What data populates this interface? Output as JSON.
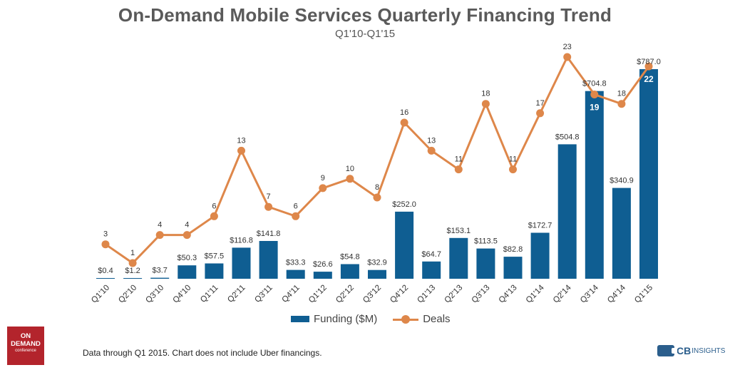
{
  "chart_data": {
    "type": "bar",
    "title": "On-Demand Mobile Services Quarterly Financing Trend",
    "subtitle": "Q1'10-Q1'15",
    "categories": [
      "Q1'10",
      "Q2'10",
      "Q3'10",
      "Q4'10",
      "Q1'11",
      "Q2'11",
      "Q3'11",
      "Q4'11",
      "Q1'12",
      "Q2'12",
      "Q3'12",
      "Q4'12",
      "Q1'13",
      "Q2'13",
      "Q3'13",
      "Q4'13",
      "Q1'14",
      "Q2'14",
      "Q3'14",
      "Q4'14",
      "Q1'15"
    ],
    "series": [
      {
        "name": "Funding ($M)",
        "type": "bar",
        "color": "#0f5e92",
        "values": [
          0.4,
          1.2,
          3.7,
          50.3,
          57.5,
          116.8,
          141.8,
          33.3,
          26.6,
          54.8,
          32.9,
          252.0,
          64.7,
          153.1,
          113.5,
          82.8,
          172.7,
          504.8,
          704.8,
          340.9,
          787.0
        ],
        "labels": [
          "$0.4",
          "$1.2",
          "$3.7",
          "$50.3",
          "$57.5",
          "$116.8",
          "$141.8",
          "$33.3",
          "$26.6",
          "$54.8",
          "$32.9",
          "$252.0",
          "$64.7",
          "$153.1",
          "$113.5",
          "$82.8",
          "$172.7",
          "$504.8",
          "$704.8",
          "$340.9",
          "$787.0"
        ]
      },
      {
        "name": "Deals",
        "type": "line",
        "color": "#de874a",
        "values": [
          3,
          1,
          4,
          4,
          6,
          13,
          7,
          6,
          9,
          10,
          8,
          16,
          13,
          11,
          18,
          11,
          17,
          23,
          19,
          18,
          22
        ],
        "labels": [
          "3",
          "1",
          "4",
          "4",
          "6",
          "13",
          "7",
          "6",
          "9",
          "10",
          "8",
          "16",
          "13",
          "11",
          "18",
          "11",
          "17",
          "23",
          "19",
          "18",
          "22"
        ]
      }
    ],
    "ylim_funding": [
      0,
      830
    ],
    "ylim_deals": [
      0,
      25.7
    ],
    "legend_position": "bottom-center"
  },
  "footnote": "Data through Q1 2015. Chart does not include Uber financings.",
  "logos": {
    "left": {
      "line1": "ON",
      "line2": "DEMAND",
      "line3": "conference"
    },
    "right": {
      "strong": "CB",
      "rest": "INSIGHTS"
    }
  }
}
